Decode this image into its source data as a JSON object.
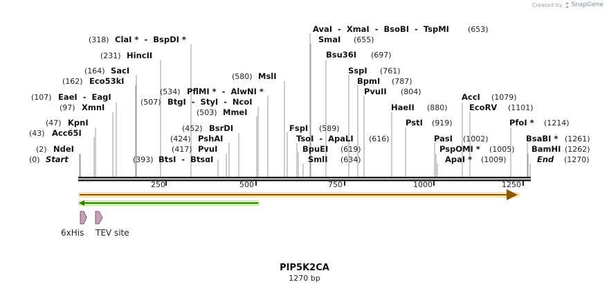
{
  "credit": {
    "text": "Created by",
    "brand": "SnapGene"
  },
  "sequence": {
    "name": "PIP5K2CA",
    "length_label": "1270 bp",
    "length": 1270
  },
  "axis": {
    "ticks": [
      "250",
      "500",
      "750",
      "1000",
      "1250"
    ]
  },
  "features": [
    {
      "name": "6xHis",
      "color": "#c9a0b8"
    },
    {
      "name": "TEV site",
      "color": "#c9a0b8"
    }
  ],
  "sites": [
    {
      "pos": "(0)",
      "name": "Start",
      "italic": true
    },
    {
      "pos": "(2)",
      "name": "NdeI"
    },
    {
      "pos": "(43)",
      "name": "Acc65I"
    },
    {
      "pos": "(47)",
      "name": "KpnI"
    },
    {
      "pos": "(97)",
      "name": "XmnI"
    },
    {
      "pos": "(107)",
      "name": "EaeI  -  EagI"
    },
    {
      "pos": "(162)",
      "name": "Eco53kI"
    },
    {
      "pos": "(164)",
      "name": "SacI"
    },
    {
      "pos": "(231)",
      "name": "HincII"
    },
    {
      "pos": "(318)",
      "name": "ClaI *  -  BspDI *"
    },
    {
      "pos": "(393)",
      "name": "BtsI  -  BtsαI",
      "pos_after": true
    },
    {
      "pos": "(417)",
      "name": "PvuI"
    },
    {
      "pos": "(424)",
      "name": "PshAI"
    },
    {
      "pos": "(452)",
      "name": "BsrDI"
    },
    {
      "pos": "(503)",
      "name": "MmeI"
    },
    {
      "pos": "(507)",
      "name": "BtgI  -  StyI  -  NcoI"
    },
    {
      "pos": "(534)",
      "name": "PflMI *  -  AlwNI *"
    },
    {
      "pos": "(580)",
      "name": "MslI"
    },
    {
      "pos": "(589)",
      "name": "FspI",
      "pos_after": true
    },
    {
      "pos": "(616)",
      "name": "TsoI  -  ApaLI",
      "pos_after": true
    },
    {
      "pos": "(619)",
      "name": "BpuEI",
      "pos_after": true
    },
    {
      "pos": "(634)",
      "name": "SmlI",
      "pos_after": true
    },
    {
      "pos": "(653)",
      "name": "AvaI  -  XmaI  -  BsoBI  -  TspMI",
      "pos_after": true
    },
    {
      "pos": "(655)",
      "name": "SmaI",
      "pos_after": true
    },
    {
      "pos": "(697)",
      "name": "Bsu36I",
      "pos_after": true
    },
    {
      "pos": "(761)",
      "name": "SspI",
      "pos_after": true
    },
    {
      "pos": "(787)",
      "name": "BpmI",
      "pos_after": true
    },
    {
      "pos": "(804)",
      "name": "PvuII",
      "pos_after": true
    },
    {
      "pos": "(880)",
      "name": "HaeII",
      "pos_after": true
    },
    {
      "pos": "(919)",
      "name": "PstI",
      "pos_after": true
    },
    {
      "pos": "(1002)",
      "name": "PasI",
      "pos_after": true
    },
    {
      "pos": "(1005)",
      "name": "PspOMI *",
      "pos_after": true
    },
    {
      "pos": "(1009)",
      "name": "ApaI *",
      "pos_after": true
    },
    {
      "pos": "(1079)",
      "name": "AccI",
      "pos_after": true
    },
    {
      "pos": "(1101)",
      "name": "EcoRV",
      "pos_after": true
    },
    {
      "pos": "(1214)",
      "name": "PfoI *",
      "pos_after": true
    },
    {
      "pos": "(1261)",
      "name": "BsaBI *",
      "pos_after": true
    },
    {
      "pos": "(1262)",
      "name": "BamHI",
      "pos_after": true
    },
    {
      "pos": "(1270)",
      "name": "End",
      "italic": true,
      "pos_after": true
    }
  ]
}
